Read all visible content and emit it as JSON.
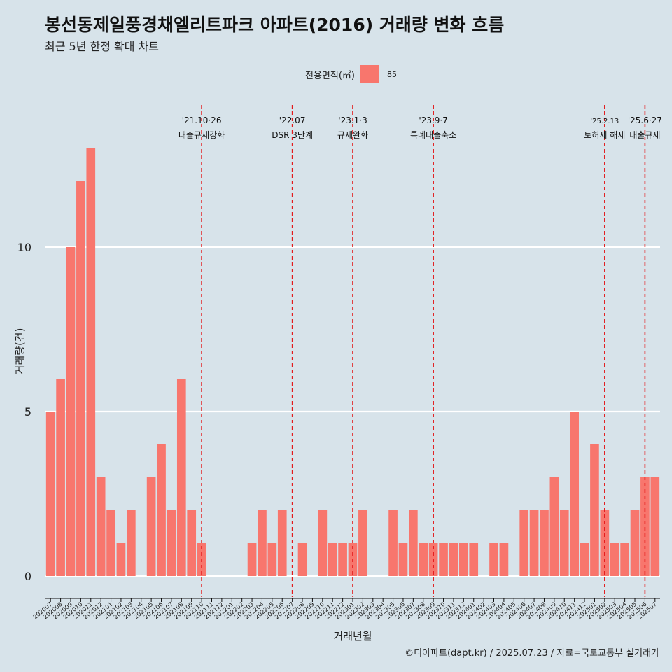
{
  "title": "봉선동제일풍경채엘리트파크 아파트(2016) 거래량 변화 흐름",
  "subtitle": "최근 5년 한정 확대 차트",
  "caption": "©디아파트(dapt.kr) / 2025.07.23 / 자료=국토교통부 실거래가",
  "colors": {
    "background": "#d7e3ea",
    "bar": "#f8766d",
    "event_line": "#e31a1c",
    "grid": "#ffffff"
  },
  "chart_data": {
    "type": "bar",
    "xlabel": "거래년월",
    "ylabel": "거래량(건)",
    "legend": {
      "title": "전용면적(㎡)",
      "position": "top"
    },
    "ylim": [
      0,
      13
    ],
    "yticks": [
      0,
      5,
      10
    ],
    "grid": true,
    "categories": [
      "202007",
      "202008",
      "202009",
      "202010",
      "202011",
      "202012",
      "202101",
      "202102",
      "202103",
      "202104",
      "202105",
      "202106",
      "202107",
      "202108",
      "202109",
      "202110",
      "202111",
      "202112",
      "202201",
      "202202",
      "202203",
      "202204",
      "202205",
      "202206",
      "202207",
      "202208",
      "202209",
      "202210",
      "202211",
      "202212",
      "202301",
      "202302",
      "202303",
      "202304",
      "202305",
      "202306",
      "202307",
      "202308",
      "202309",
      "202310",
      "202311",
      "202312",
      "202401",
      "202402",
      "202403",
      "202404",
      "202405",
      "202406",
      "202407",
      "202408",
      "202409",
      "202410",
      "202411",
      "202412",
      "202501",
      "202502",
      "202503",
      "202504",
      "202505",
      "202506",
      "202507"
    ],
    "series": [
      {
        "name": "85",
        "values": [
          5,
          6,
          10,
          12,
          13,
          3,
          2,
          1,
          2,
          0,
          3,
          4,
          2,
          6,
          2,
          1,
          0,
          0,
          0,
          0,
          1,
          2,
          1,
          2,
          0,
          1,
          0,
          2,
          1,
          1,
          1,
          2,
          0,
          0,
          2,
          1,
          2,
          1,
          1,
          1,
          1,
          1,
          1,
          0,
          1,
          1,
          0,
          2,
          2,
          2,
          3,
          2,
          5,
          1,
          4,
          2,
          1,
          1,
          2,
          3,
          3
        ]
      }
    ],
    "annotations": [
      {
        "at": "202110",
        "date": "'21.10·26",
        "label": "대출규제강화"
      },
      {
        "at": "202207",
        "date": "'22.07",
        "label": "DSR 3단계"
      },
      {
        "at": "202301",
        "date": "'23.1·3",
        "label": "규제완화"
      },
      {
        "at": "202309",
        "date": "'23.9·7",
        "label": "특례대출축소"
      },
      {
        "at": "202502",
        "date": "'25.2.13",
        "label": "토허제 해제"
      },
      {
        "at": "202506",
        "date": "'25.6·27",
        "label": "대출규제"
      }
    ]
  }
}
